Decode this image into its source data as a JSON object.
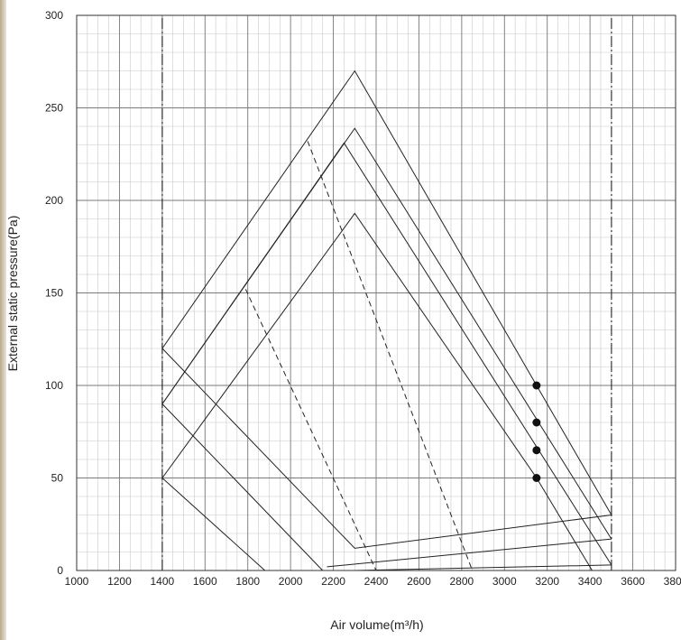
{
  "chart_data": {
    "type": "line",
    "title": "",
    "xlabel": "Air volume(m³/h)",
    "ylabel": "External static pressure(Pa)",
    "xlim": [
      1000,
      3800
    ],
    "ylim": [
      0,
      300
    ],
    "x_ticks": [
      "1000",
      "1200",
      "1400",
      "1600",
      "1800",
      "2000",
      "2200",
      "2400",
      "2600",
      "2800",
      "3000",
      "3200",
      "3400",
      "3600",
      "3800"
    ],
    "y_ticks": [
      "0",
      "50",
      "100",
      "150",
      "200",
      "250",
      "300"
    ],
    "grid": true,
    "minor_grid_step": {
      "x": 50,
      "y": 10
    },
    "series": [
      {
        "style": "solid",
        "points": [
          [
            1400,
            120
          ],
          [
            2300,
            270
          ],
          [
            3500,
            30
          ]
        ]
      },
      {
        "style": "solid",
        "points": [
          [
            1400,
            90
          ],
          [
            2300,
            239
          ],
          [
            3500,
            17
          ]
        ]
      },
      {
        "style": "solid",
        "points": [
          [
            1400,
            90
          ],
          [
            2250,
            231
          ],
          [
            3500,
            3
          ]
        ]
      },
      {
        "style": "solid",
        "points": [
          [
            1400,
            50
          ],
          [
            2300,
            193
          ],
          [
            3150,
            50
          ],
          [
            3410,
            0
          ]
        ]
      },
      {
        "style": "solid",
        "points": [
          [
            1400,
            120
          ],
          [
            2300,
            12
          ],
          [
            3500,
            30
          ]
        ]
      },
      {
        "style": "solid",
        "points": [
          [
            1400,
            90
          ],
          [
            2150,
            0
          ]
        ]
      },
      {
        "style": "solid",
        "points": [
          [
            1400,
            50
          ],
          [
            1880,
            0
          ]
        ]
      },
      {
        "style": "solid",
        "points": [
          [
            2170,
            2
          ],
          [
            3500,
            17
          ]
        ]
      },
      {
        "style": "solid",
        "points": [
          [
            2300,
            0
          ],
          [
            3500,
            3
          ]
        ]
      },
      {
        "style": "dashed",
        "points": [
          [
            2080,
            232
          ],
          [
            2850,
            0
          ]
        ]
      },
      {
        "style": "dashed",
        "points": [
          [
            1790,
            152
          ],
          [
            2400,
            0
          ]
        ]
      },
      {
        "style": "dashdot",
        "points": [
          [
            1400,
            0
          ],
          [
            1400,
            300
          ]
        ]
      },
      {
        "style": "dashdot",
        "points": [
          [
            3500,
            0
          ],
          [
            3500,
            300
          ]
        ]
      }
    ],
    "markers": [
      {
        "x": 3150,
        "y": 100
      },
      {
        "x": 3150,
        "y": 80
      },
      {
        "x": 3150,
        "y": 65
      },
      {
        "x": 3150,
        "y": 50
      }
    ],
    "colors": {
      "line": "#222222",
      "grid_major": "#7a7a7a",
      "grid_minor": "#c8c8c8",
      "strip": "#c8b99e"
    }
  }
}
